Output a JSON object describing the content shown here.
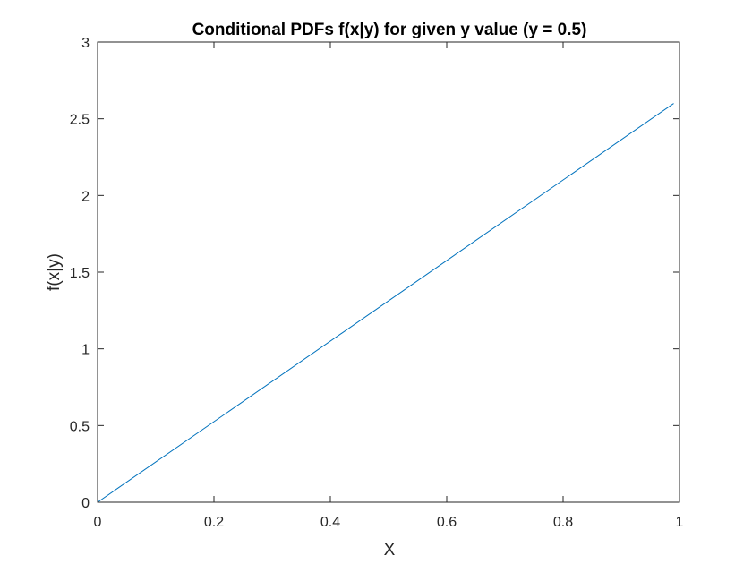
{
  "chart_data": {
    "type": "line",
    "title": "Conditional PDFs f(x|y) for given y value (y = 0.5)",
    "xlabel": "X",
    "ylabel": "f(x|y)",
    "xlim": [
      0,
      1
    ],
    "ylim": [
      0,
      3
    ],
    "xticks": [
      0,
      0.2,
      0.4,
      0.6,
      0.8,
      1
    ],
    "xtick_labels": [
      "0",
      "0.2",
      "0.4",
      "0.6",
      "0.8",
      "1"
    ],
    "yticks": [
      0,
      0.5,
      1,
      1.5,
      2,
      2.5,
      3
    ],
    "ytick_labels": [
      "0",
      "0.5",
      "1",
      "1.5",
      "2",
      "2.5",
      "3"
    ],
    "grid": false,
    "legend": "none",
    "series": [
      {
        "color": "#0072BD",
        "x": [
          0,
          0.99
        ],
        "y": [
          0,
          2.6
        ]
      }
    ]
  }
}
